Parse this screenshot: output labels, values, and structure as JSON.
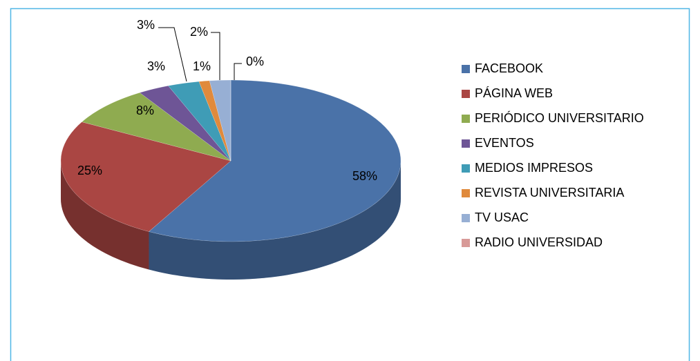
{
  "chart_data": {
    "type": "pie3d",
    "categories": [
      "FACEBOOK",
      "PÁGINA WEB",
      "PERIÓDICO UNIVERSITARIO",
      "EVENTOS",
      "MEDIOS IMPRESOS",
      "REVISTA UNIVERSITARIA",
      "TV USAC",
      "RADIO UNIVERSIDAD"
    ],
    "values": [
      58,
      25,
      8,
      3,
      3,
      1,
      2,
      0
    ],
    "value_labels": [
      "58%",
      "25%",
      "8%",
      "3%",
      "3%",
      "1%",
      "2%",
      "0%"
    ],
    "colors": [
      "#4a72a8",
      "#aa4643",
      "#8fab50",
      "#6e5596",
      "#3f9cb6",
      "#e08a3c",
      "#97afd4",
      "#d89a98"
    ],
    "legend": "right"
  }
}
